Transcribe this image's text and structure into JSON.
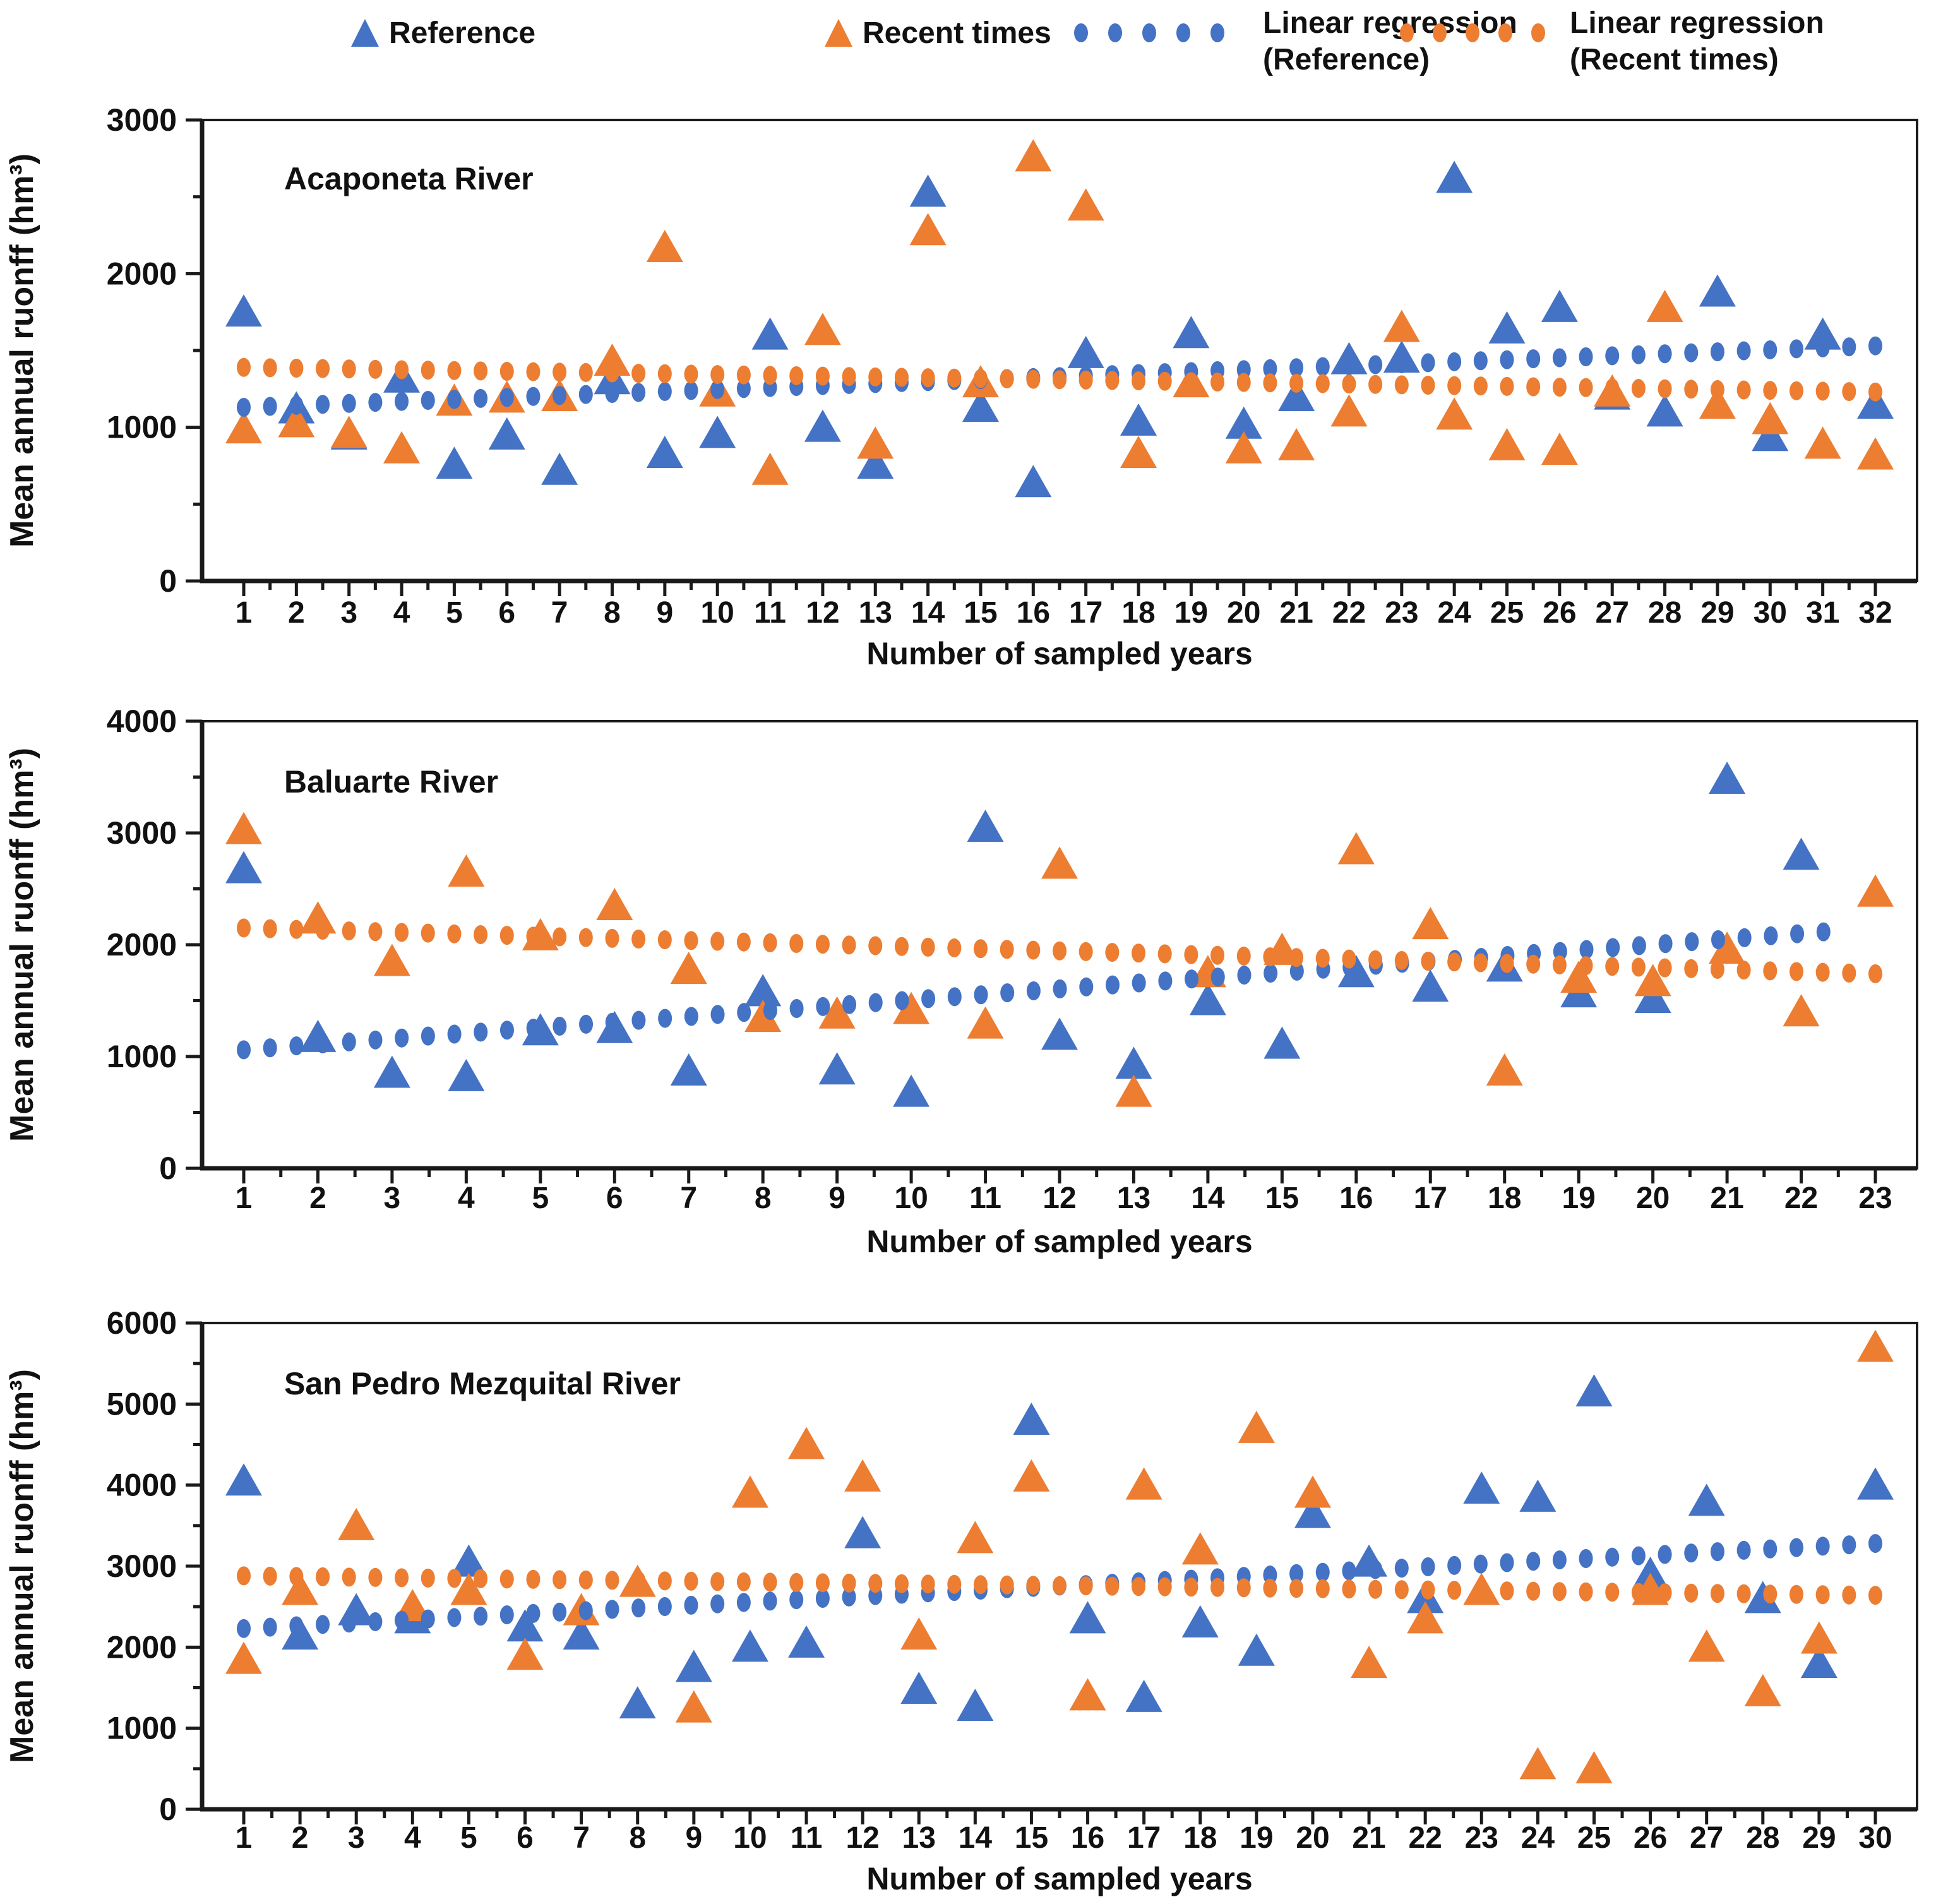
{
  "legend": {
    "items": [
      {
        "swatch": "blue-triangle",
        "color": "#4472C4",
        "label_lines": [
          "Reference"
        ]
      },
      {
        "swatch": "orange-triangle",
        "color": "#ED7D31",
        "label_lines": [
          "Recent times"
        ]
      },
      {
        "swatch": "blue-dotted-line",
        "color": "#4472C4",
        "label_lines": [
          "Linear regression",
          "(Reference)"
        ]
      },
      {
        "swatch": "orange-dotted-line",
        "color": "#ED7D31",
        "label_lines": [
          "Linear regression",
          "(Recent times)"
        ]
      }
    ]
  },
  "colors": {
    "reference": "#4472C4",
    "recent": "#ED7D31",
    "axis": "#1a1a1a",
    "text": "#111111"
  },
  "chart_data": [
    {
      "type": "scatter",
      "title": "Acaponeta River",
      "xlabel": "Number of sampled years",
      "ylabel": "Mean annual ruonff (hm³)",
      "ylim": [
        0,
        3000
      ],
      "ytick_step": 1000,
      "y_minor_step": 500,
      "grid": false,
      "legend_position": "top",
      "categories": [
        1,
        2,
        3,
        4,
        5,
        6,
        7,
        8,
        9,
        10,
        11,
        12,
        13,
        14,
        15,
        16,
        17,
        18,
        19,
        20,
        21,
        22,
        23,
        24,
        25,
        26,
        27,
        28,
        29,
        30,
        31,
        32
      ],
      "series": [
        {
          "name": "Reference",
          "marker": "triangle",
          "color": "#4472C4",
          "values": [
            1750,
            1120,
            950,
            1320,
            760,
            950,
            720,
            1310,
            830,
            960,
            1600,
            1000,
            760,
            2530,
            1130,
            640,
            1480,
            1040,
            1610,
            1020,
            1200,
            1440,
            1450,
            2620,
            1640,
            1780,
            1210,
            1100,
            1880,
            940,
            1600,
            1150
          ]
        },
        {
          "name": "Recent times",
          "marker": "triangle",
          "color": "#ED7D31",
          "values": [
            990,
            1030,
            960,
            860,
            1170,
            1190,
            1200,
            1430,
            2170,
            1230,
            720,
            1630,
            890,
            2280,
            1290,
            2760,
            2440,
            830,
            1290,
            860,
            880,
            1100,
            1650,
            1080,
            880,
            850,
            1230,
            1780,
            1150,
            1050,
            890,
            820
          ]
        },
        {
          "name": "Linear regression (Reference)",
          "style": "dotted",
          "color": "#4472C4",
          "trend": [
            1130,
            1530
          ],
          "x_span": [
            1,
            32
          ]
        },
        {
          "name": "Linear regression (Recent times)",
          "style": "dotted",
          "color": "#ED7D31",
          "trend": [
            1390,
            1230
          ],
          "x_span": [
            1,
            32
          ]
        }
      ]
    },
    {
      "type": "scatter",
      "title": "Baluarte River",
      "xlabel": "Number of sampled years",
      "ylabel": "Mean annual ruonff (hm³)",
      "ylim": [
        0,
        4000
      ],
      "ytick_step": 1000,
      "y_minor_step": 500,
      "grid": false,
      "legend_position": "top",
      "categories": [
        1,
        2,
        3,
        4,
        5,
        6,
        7,
        8,
        9,
        10,
        11,
        12,
        13,
        14,
        15,
        16,
        17,
        18,
        19,
        20,
        21,
        22,
        23
      ],
      "series": [
        {
          "name": "Reference",
          "marker": "triangle",
          "color": "#4472C4",
          "values": [
            2680,
            1170,
            850,
            820,
            1230,
            1250,
            870,
            1580,
            880,
            680,
            3050,
            1190,
            930,
            1500,
            1110,
            1750,
            1620,
            1800,
            1570,
            1520,
            3480,
            2800,
            null
          ]
        },
        {
          "name": "Recent times",
          "marker": "triangle",
          "color": "#ED7D31",
          "values": [
            3030,
            2230,
            1850,
            2650,
            2080,
            2350,
            1780,
            1350,
            1380,
            1420,
            1290,
            2720,
            680,
            1750,
            1950,
            2850,
            2180,
            870,
            1700,
            1670,
            1960,
            1400,
            2470
          ]
        },
        {
          "name": "Linear regression (Reference)",
          "style": "dotted",
          "color": "#4472C4",
          "trend": [
            1060,
            2150
          ],
          "x_span": [
            1,
            22.3
          ]
        },
        {
          "name": "Linear regression (Recent times)",
          "style": "dotted",
          "color": "#ED7D31",
          "trend": [
            2150,
            1740
          ],
          "x_span": [
            1,
            23
          ]
        }
      ]
    },
    {
      "type": "scatter",
      "title": "San Pedro Mezquital River",
      "xlabel": "Number of sampled years",
      "ylabel": "Mean annual ruonff (hm³)",
      "ylim": [
        0,
        6000
      ],
      "ytick_step": 1000,
      "y_minor_step": 500,
      "grid": false,
      "legend_position": "top",
      "categories": [
        1,
        2,
        3,
        4,
        5,
        6,
        7,
        8,
        9,
        10,
        11,
        12,
        13,
        14,
        15,
        16,
        17,
        18,
        19,
        20,
        21,
        22,
        23,
        24,
        25,
        26,
        27,
        28,
        29,
        30
      ],
      "series": [
        {
          "name": "Reference",
          "marker": "triangle",
          "color": "#4472C4",
          "values": [
            4050,
            2150,
            2450,
            2350,
            3050,
            2250,
            2150,
            1300,
            1750,
            2000,
            2050,
            3400,
            1480,
            1270,
            4800,
            2350,
            1380,
            2300,
            1950,
            3650,
            3050,
            2600,
            3950,
            3850,
            5150,
            2900,
            3800,
            2600,
            1800,
            4000
          ]
        },
        {
          "name": "Recent times",
          "marker": "triangle",
          "color": "#ED7D31",
          "values": [
            1850,
            2700,
            3500,
            2500,
            2700,
            1900,
            2450,
            2800,
            1250,
            3900,
            4500,
            4100,
            2150,
            3340,
            4100,
            1400,
            4000,
            3200,
            4700,
            3900,
            1800,
            2350,
            2700,
            550,
            500,
            2700,
            2000,
            1450,
            2100,
            5700
          ]
        },
        {
          "name": "Linear regression (Reference)",
          "style": "dotted",
          "color": "#4472C4",
          "trend": [
            2230,
            3280
          ],
          "x_span": [
            1,
            30
          ]
        },
        {
          "name": "Linear regression (Recent times)",
          "style": "dotted",
          "color": "#ED7D31",
          "trend": [
            2880,
            2640
          ],
          "x_span": [
            1,
            30
          ]
        }
      ]
    }
  ]
}
